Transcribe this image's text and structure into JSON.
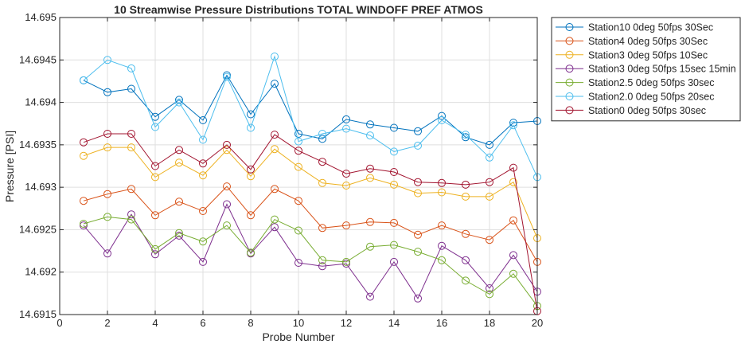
{
  "chart_data": {
    "type": "line",
    "title": "10 Streamwise Pressure Distributions TOTAL WINDOFF PREF ATMOS",
    "xlabel": "Probe Number",
    "ylabel": "Pressure [PSI]",
    "xlim": [
      0,
      20
    ],
    "ylim": [
      14.6915,
      14.695
    ],
    "xticks": [
      0,
      2,
      4,
      6,
      8,
      10,
      12,
      14,
      16,
      18,
      20
    ],
    "yticks": [
      14.6915,
      14.692,
      14.6925,
      14.693,
      14.6935,
      14.694,
      14.6945,
      14.695
    ],
    "ytick_labels": [
      "14.6915",
      "14.692",
      "14.6925",
      "14.693",
      "14.6935",
      "14.694",
      "14.6945",
      "14.695"
    ],
    "grid": true,
    "legend_position": "outside-top-right",
    "marker": "open-circle",
    "x": [
      1,
      2,
      3,
      4,
      5,
      6,
      7,
      8,
      9,
      10,
      11,
      12,
      13,
      14,
      15,
      16,
      17,
      18,
      19,
      20
    ],
    "series": [
      {
        "name": "Station10 0deg 50fps 30Sec",
        "color": "#0072BD",
        "values": [
          14.69426,
          14.69412,
          14.69416,
          14.69383,
          14.69403,
          14.69379,
          14.69432,
          14.69386,
          14.69422,
          14.69363,
          14.69357,
          14.6938,
          14.69374,
          14.6937,
          14.69366,
          14.69384,
          14.69359,
          14.6935,
          14.69376,
          14.69378
        ]
      },
      {
        "name": "Station4 0deg 50fps 30Sec",
        "color": "#D95319",
        "values": [
          14.69284,
          14.69292,
          14.69298,
          14.69267,
          14.69283,
          14.69272,
          14.69301,
          14.69267,
          14.69298,
          14.69284,
          14.69252,
          14.69255,
          14.69259,
          14.69258,
          14.69244,
          14.69255,
          14.69245,
          14.69238,
          14.69261,
          14.69212
        ]
      },
      {
        "name": "Station3 0deg 50fps 10Sec",
        "color": "#EDB120",
        "values": [
          14.69337,
          14.69347,
          14.69347,
          14.69312,
          14.69329,
          14.69314,
          14.69344,
          14.69313,
          14.69345,
          14.69324,
          14.69305,
          14.69302,
          14.69311,
          14.69303,
          14.69293,
          14.69294,
          14.69289,
          14.69289,
          14.69306,
          14.6924
        ]
      },
      {
        "name": "Station3 0deg 50fps 15sec 15min",
        "color": "#7E2F8E",
        "values": [
          14.69255,
          14.69222,
          14.69268,
          14.69221,
          14.69243,
          14.69212,
          14.6928,
          14.69222,
          14.69253,
          14.69211,
          14.69207,
          14.6921,
          14.69171,
          14.69212,
          14.69169,
          14.69231,
          14.69214,
          14.69181,
          14.6922,
          14.69177
        ]
      },
      {
        "name": "Station2.5 0deg 50fps 30sec",
        "color": "#77AC30",
        "values": [
          14.69257,
          14.69265,
          14.69262,
          14.69227,
          14.69246,
          14.69236,
          14.69255,
          14.69223,
          14.69262,
          14.69249,
          14.69214,
          14.69212,
          14.6923,
          14.69232,
          14.69224,
          14.69214,
          14.6919,
          14.69174,
          14.69198,
          14.6916
        ]
      },
      {
        "name": "Station2.0 0deg 50fps 20sec",
        "color": "#4DBEEE",
        "values": [
          14.69426,
          14.6945,
          14.6944,
          14.69371,
          14.694,
          14.69356,
          14.6943,
          14.6937,
          14.69454,
          14.69354,
          14.69363,
          14.69369,
          14.69361,
          14.69342,
          14.69349,
          14.69379,
          14.69362,
          14.69335,
          14.69373,
          14.69312
        ]
      },
      {
        "name": "Station0 0deg 50fps 30sec",
        "color": "#A2142F",
        "values": [
          14.69353,
          14.69363,
          14.69363,
          14.69325,
          14.69344,
          14.69328,
          14.6935,
          14.69321,
          14.69362,
          14.69343,
          14.6933,
          14.69316,
          14.69322,
          14.69318,
          14.69306,
          14.69305,
          14.69303,
          14.69306,
          14.69323,
          14.69154
        ]
      }
    ]
  }
}
